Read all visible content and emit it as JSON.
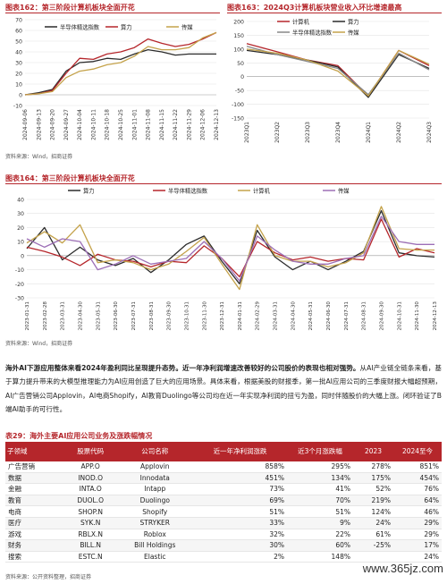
{
  "fig162": {
    "title": "图表162：第三阶段计算机板块全面开花",
    "source": "资料来源：Wind，招商证券",
    "chart_data": {
      "type": "line",
      "x": [
        "2024-09-06",
        "2024-09-13",
        "2024-09-20",
        "2024-09-27",
        "2024-10-04",
        "2024-10-11",
        "2024-10-18",
        "2024-10-25",
        "2024-11-01",
        "2024-11-08",
        "2024-11-15",
        "2024-11-22",
        "2024-11-29",
        "2024-12-06",
        "2024-12-13"
      ],
      "x_ticks": [
        "2024-09-06",
        "2024-09-13",
        "2024-09-20",
        "2024-09-27",
        "2024-10-04",
        "2024-10-11",
        "2024-10-18",
        "2024-10-25",
        "2024-11-01",
        "2024-11-08",
        "2024-11-15",
        "2024-11-22",
        "2024-11-29",
        "2024-12-06",
        "2024-12-13"
      ],
      "ylim": [
        -10,
        70
      ],
      "y_ticks": [
        "70",
        "60",
        "50",
        "40",
        "30",
        "20",
        "10",
        "0",
        "-10"
      ],
      "series": [
        {
          "name": "半导体精选指数",
          "color": "#2b2b2b",
          "values": [
            0,
            2,
            5,
            22,
            30,
            31,
            34,
            33,
            38,
            42,
            40,
            37,
            38,
            38,
            38
          ]
        },
        {
          "name": "算力",
          "color": "#b5262b",
          "values": [
            0,
            1,
            4,
            20,
            34,
            33,
            38,
            40,
            44,
            52,
            48,
            45,
            47,
            52,
            58
          ]
        },
        {
          "name": "传媒",
          "color": "#c4a24a",
          "values": [
            0,
            1,
            3,
            16,
            22,
            24,
            28,
            30,
            36,
            45,
            42,
            42,
            44,
            53,
            58
          ]
        }
      ]
    }
  },
  "fig163": {
    "title": "图表163：2024Q3计算机板块营业收入环比增速最高",
    "chart_data": {
      "type": "line",
      "x": [
        "2023Q1",
        "2023Q2",
        "2023Q3",
        "2023Q4",
        "2024Q1",
        "2024Q2",
        "2024Q3"
      ],
      "ylim": [
        -150,
        200
      ],
      "y_ticks": [
        "200",
        "150",
        "100",
        "50",
        "0",
        "-50",
        "-100",
        "-150"
      ],
      "series": [
        {
          "name": "计算机",
          "color": "#b5262b",
          "values": [
            120,
            90,
            60,
            40,
            -70,
            95,
            40
          ]
        },
        {
          "name": "算力",
          "color": "#2b2b2b",
          "values": [
            95,
            80,
            60,
            35,
            -75,
            80,
            30
          ]
        },
        {
          "name": "半导体精选指数",
          "color": "#888888",
          "values": [
            110,
            80,
            55,
            30,
            -65,
            85,
            25
          ]
        },
        {
          "name": "传媒",
          "color": "#c4a24a",
          "values": [
            100,
            85,
            60,
            20,
            -70,
            95,
            45
          ]
        }
      ]
    }
  },
  "fig164": {
    "title": "图表164：第三阶段计算机板块全面开花",
    "source": "资料来源：Wind，招商证券",
    "chart_data": {
      "type": "line",
      "x": [
        "2023-01-31",
        "2023-02-28",
        "2023-03-31",
        "2023-04-30",
        "2023-05-31",
        "2023-06-30",
        "2023-07-31",
        "2023-08-31",
        "2023-09-30",
        "2023-10-31",
        "2023-11-30",
        "2023-12-31",
        "2024-01-31",
        "2024-02-29",
        "2024-03-31",
        "2024-04-30",
        "2024-05-31",
        "2024-06-30",
        "2024-07-31",
        "2024-08-31",
        "2024-09-30",
        "2024-10-31",
        "2024-11-30",
        "2024-12-13"
      ],
      "ylim": [
        -30,
        40
      ],
      "y_ticks": [
        "40",
        "30",
        "20",
        "10",
        "0",
        "-10",
        "-20",
        "-30"
      ],
      "series": [
        {
          "name": "算力",
          "color": "#2b2b2b",
          "values": [
            5,
            20,
            -3,
            6,
            -3,
            -7,
            -2,
            -12,
            -3,
            8,
            14,
            -4,
            -20,
            18,
            -1,
            -10,
            -4,
            -10,
            -4,
            3,
            32,
            2,
            0,
            -1
          ]
        },
        {
          "name": "半导体精选指数",
          "color": "#b5262b",
          "values": [
            6,
            3,
            -1,
            -7,
            1,
            -3,
            -4,
            -8,
            -4,
            -5,
            7,
            -2,
            -15,
            10,
            2,
            -3,
            -1,
            -4,
            -2,
            -3,
            26,
            -1,
            5,
            2
          ]
        },
        {
          "name": "计算机",
          "color": "#c4a24a",
          "values": [
            9,
            17,
            9,
            22,
            -5,
            -3,
            -5,
            -10,
            -6,
            3,
            13,
            -6,
            -24,
            22,
            0,
            -4,
            -4,
            -8,
            -5,
            2,
            35,
            5,
            4,
            4
          ]
        },
        {
          "name": "传媒",
          "color": "#9d6fb6",
          "values": [
            12,
            6,
            12,
            10,
            -10,
            -6,
            0,
            -6,
            -4,
            -2,
            10,
            -2,
            -18,
            14,
            4,
            -4,
            -6,
            -6,
            -2,
            0,
            28,
            10,
            8,
            8
          ]
        }
      ]
    }
  },
  "para": {
    "lead": "海外AI下游应用整体来看2024年盈利同比呈现提升态势。近一年净利润增速改善较好的公司股价的表现也相对强势。",
    "body": "从AI产业链全链条来看，基于算力提升带来的大模型推理能力为AI应用创造了巨大的应用场景。具体来看，根据美股的财报季，第一批AI应用公司的三季度财报大幅超预期，AI广告营销公司Applovin，AI电商Shopify，AI教育Duolingo等公司均在近一年实现净利润的扭亏为盈，同时伴随股价的大幅上涨。闭环验证了B端AI助手的可行性。"
  },
  "table": {
    "title": "表29：海外主要AI应用公司业务及涨跌幅情况",
    "headers": [
      "子领域",
      "股票代码",
      "公司名称",
      "近一年净利润涨跌",
      "近3个月涨跌幅",
      "2023",
      "2024至今"
    ],
    "rows": [
      [
        "广告营销",
        "APP.O",
        "Applovin",
        "858%",
        "295%",
        "278%",
        "851%"
      ],
      [
        "数据",
        "INOD.O",
        "Innodata",
        "451%",
        "134%",
        "175%",
        "454%"
      ],
      [
        "金融",
        "INTA.O",
        "Intapp",
        "73%",
        "41%",
        "52%",
        "76%"
      ],
      [
        "教育",
        "DUOL.O",
        "Duolingo",
        "69%",
        "70%",
        "219%",
        "64%"
      ],
      [
        "电商",
        "SHOP.N",
        "Shopify",
        "51%",
        "51%",
        "124%",
        "46%"
      ],
      [
        "医疗",
        "SYK.N",
        "STRYKER",
        "33%",
        "9%",
        "24%",
        "29%"
      ],
      [
        "游戏",
        "RBLX.N",
        "Roblox",
        "32%",
        "22%",
        "61%",
        "29%"
      ],
      [
        "财务",
        "BILL.N",
        "Bill Holdings",
        "30%",
        "60%",
        "-25%",
        "17%"
      ],
      [
        "搜索",
        "ESTC.N",
        "Elastic",
        "2%",
        "148%",
        "",
        "24%"
      ]
    ],
    "source": "资料来源：公开资料整理，招商证券"
  },
  "watermark": "www.365jz.com"
}
